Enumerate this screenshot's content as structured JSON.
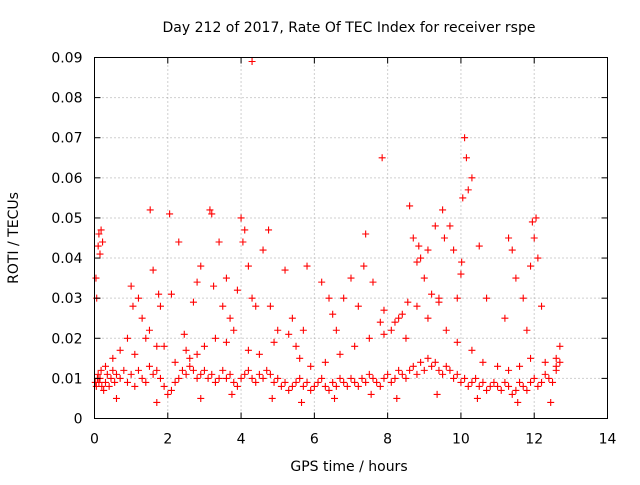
{
  "chart_data": {
    "type": "scatter",
    "title": "Day 212 of 2017, Rate Of TEC Index for receiver rspe",
    "xlabel": "GPS time / hours",
    "ylabel": "ROTI / TECUs",
    "xlim": [
      0,
      14
    ],
    "ylim": [
      0,
      0.09
    ],
    "xticks": [
      "0",
      "2",
      "4",
      "6",
      "8",
      "10",
      "12",
      "14"
    ],
    "xtick_values": [
      0,
      2,
      4,
      6,
      8,
      10,
      12,
      14
    ],
    "yticks": [
      "0",
      "0.01",
      "0.02",
      "0.03",
      "0.04",
      "0.05",
      "0.06",
      "0.07",
      "0.08",
      "0.09"
    ],
    "ytick_values": [
      0,
      0.01,
      0.02,
      0.03,
      0.04,
      0.05,
      0.06,
      0.07,
      0.08,
      0.09
    ],
    "grid": true,
    "marker": "plus",
    "marker_color": "#ff0000",
    "series": [
      {
        "name": "ROTI",
        "x": [
          0.02,
          0.05,
          0.08,
          0.1,
          0.12,
          0.15,
          0.18,
          0.2,
          0.25,
          0.3,
          0.35,
          0.4,
          0.45,
          0.5,
          0.55,
          0.6,
          0.7,
          0.8,
          0.9,
          1.0,
          1.1,
          1.2,
          1.3,
          1.4,
          1.5,
          1.6,
          1.7,
          1.8,
          1.9,
          2.0,
          2.1,
          2.2,
          2.3,
          2.4,
          2.5,
          2.6,
          2.7,
          2.8,
          2.9,
          3.0,
          3.1,
          3.2,
          3.3,
          3.4,
          3.5,
          3.6,
          3.7,
          3.8,
          3.9,
          4.0,
          4.1,
          4.2,
          4.3,
          4.4,
          4.5,
          4.6,
          4.7,
          4.8,
          4.9,
          5.0,
          5.1,
          5.2,
          5.3,
          5.4,
          5.5,
          5.6,
          5.7,
          5.8,
          5.9,
          6.0,
          6.1,
          6.2,
          6.3,
          6.4,
          6.5,
          6.6,
          6.7,
          6.8,
          6.9,
          7.0,
          7.1,
          7.2,
          7.3,
          7.4,
          7.5,
          7.6,
          7.7,
          7.8,
          7.9,
          8.0,
          8.1,
          8.2,
          8.3,
          8.4,
          8.5,
          8.6,
          8.7,
          8.8,
          8.9,
          9.0,
          9.1,
          9.2,
          9.3,
          9.4,
          9.5,
          9.6,
          9.7,
          9.8,
          9.9,
          10.0,
          10.1,
          10.2,
          10.3,
          10.4,
          10.5,
          10.6,
          10.7,
          10.8,
          10.9,
          11.0,
          11.1,
          11.2,
          11.3,
          11.4,
          11.5,
          11.6,
          11.7,
          11.8,
          11.9,
          12.0,
          12.1,
          12.2,
          12.3,
          12.4,
          12.5,
          12.6,
          12.7,
          0.04,
          0.06,
          0.1,
          0.12,
          0.15,
          0.18,
          0.22,
          0.9,
          1.0,
          1.05,
          1.2,
          1.3,
          1.5,
          1.52,
          1.6,
          1.75,
          1.8,
          1.9,
          2.05,
          2.1,
          2.3,
          2.45,
          2.6,
          2.7,
          2.8,
          2.9,
          3.15,
          3.2,
          3.25,
          3.4,
          3.5,
          3.6,
          3.7,
          3.9,
          4.0,
          4.05,
          4.1,
          4.2,
          4.3,
          4.4,
          4.6,
          4.75,
          4.8,
          5.0,
          5.2,
          5.4,
          5.5,
          5.7,
          5.8,
          6.2,
          6.4,
          6.5,
          6.6,
          6.8,
          7.0,
          7.2,
          7.35,
          7.4,
          7.6,
          7.8,
          7.85,
          7.9,
          8.1,
          8.3,
          8.5,
          8.55,
          8.6,
          8.7,
          8.8,
          8.85,
          8.9,
          9.0,
          9.1,
          9.2,
          9.3,
          9.4,
          9.5,
          9.55,
          9.7,
          9.8,
          9.9,
          10.0,
          10.02,
          10.05,
          10.1,
          10.15,
          10.2,
          10.3,
          10.5,
          10.7,
          11.2,
          11.3,
          11.4,
          11.5,
          11.7,
          11.8,
          11.9,
          11.95,
          12.0,
          12.05,
          12.1,
          12.2,
          12.6,
          12.7,
          4.3,
          0.3,
          0.5,
          0.7,
          1.1,
          1.4,
          1.7,
          2.2,
          2.5,
          2.8,
          3.0,
          3.3,
          3.6,
          3.8,
          4.2,
          4.5,
          4.9,
          5.3,
          5.6,
          5.9,
          6.3,
          6.7,
          7.1,
          7.5,
          7.9,
          8.2,
          8.4,
          8.8,
          9.1,
          9.4,
          9.6,
          9.9,
          10.3,
          10.6,
          11.0,
          11.3,
          11.6,
          11.9,
          12.3,
          12.6,
          0.6,
          1.7,
          2.9,
          3.75,
          4.85,
          5.65,
          6.55,
          7.55,
          8.25,
          9.35,
          10.45,
          11.55,
          12.45
        ],
        "y": [
          0.009,
          0.008,
          0.01,
          0.011,
          0.009,
          0.01,
          0.012,
          0.008,
          0.007,
          0.009,
          0.011,
          0.008,
          0.01,
          0.012,
          0.009,
          0.011,
          0.01,
          0.012,
          0.009,
          0.011,
          0.008,
          0.012,
          0.01,
          0.009,
          0.013,
          0.011,
          0.012,
          0.01,
          0.008,
          0.006,
          0.007,
          0.009,
          0.01,
          0.012,
          0.011,
          0.013,
          0.012,
          0.01,
          0.011,
          0.012,
          0.01,
          0.011,
          0.009,
          0.01,
          0.012,
          0.01,
          0.011,
          0.009,
          0.008,
          0.01,
          0.011,
          0.012,
          0.01,
          0.009,
          0.011,
          0.01,
          0.012,
          0.011,
          0.009,
          0.01,
          0.008,
          0.009,
          0.007,
          0.008,
          0.009,
          0.01,
          0.008,
          0.009,
          0.007,
          0.008,
          0.009,
          0.01,
          0.008,
          0.007,
          0.009,
          0.008,
          0.01,
          0.009,
          0.008,
          0.01,
          0.009,
          0.008,
          0.01,
          0.009,
          0.011,
          0.01,
          0.009,
          0.008,
          0.01,
          0.011,
          0.009,
          0.01,
          0.012,
          0.011,
          0.01,
          0.012,
          0.013,
          0.011,
          0.014,
          0.012,
          0.015,
          0.013,
          0.014,
          0.012,
          0.011,
          0.013,
          0.012,
          0.01,
          0.011,
          0.009,
          0.01,
          0.008,
          0.009,
          0.01,
          0.008,
          0.009,
          0.007,
          0.008,
          0.009,
          0.008,
          0.007,
          0.009,
          0.008,
          0.006,
          0.007,
          0.009,
          0.008,
          0.007,
          0.009,
          0.01,
          0.008,
          0.009,
          0.011,
          0.01,
          0.009,
          0.012,
          0.014,
          0.035,
          0.03,
          0.043,
          0.046,
          0.041,
          0.047,
          0.044,
          0.02,
          0.033,
          0.028,
          0.03,
          0.025,
          0.022,
          0.052,
          0.037,
          0.031,
          0.028,
          0.018,
          0.051,
          0.031,
          0.044,
          0.021,
          0.015,
          0.029,
          0.034,
          0.038,
          0.052,
          0.051,
          0.033,
          0.044,
          0.028,
          0.035,
          0.025,
          0.032,
          0.05,
          0.044,
          0.047,
          0.038,
          0.03,
          0.028,
          0.042,
          0.047,
          0.028,
          0.022,
          0.037,
          0.025,
          0.018,
          0.022,
          0.038,
          0.034,
          0.03,
          0.026,
          0.022,
          0.03,
          0.035,
          0.028,
          0.038,
          0.046,
          0.034,
          0.024,
          0.065,
          0.027,
          0.022,
          0.025,
          0.02,
          0.029,
          0.053,
          0.045,
          0.039,
          0.043,
          0.04,
          0.035,
          0.042,
          0.031,
          0.048,
          0.029,
          0.052,
          0.045,
          0.048,
          0.042,
          0.03,
          0.036,
          0.039,
          0.055,
          0.07,
          0.065,
          0.057,
          0.06,
          0.043,
          0.03,
          0.025,
          0.045,
          0.042,
          0.035,
          0.03,
          0.022,
          0.038,
          0.049,
          0.045,
          0.05,
          0.04,
          0.028,
          0.015,
          0.018,
          0.089,
          0.013,
          0.015,
          0.017,
          0.016,
          0.02,
          0.018,
          0.014,
          0.017,
          0.016,
          0.018,
          0.02,
          0.019,
          0.022,
          0.017,
          0.016,
          0.019,
          0.021,
          0.015,
          0.013,
          0.014,
          0.016,
          0.018,
          0.02,
          0.021,
          0.024,
          0.026,
          0.028,
          0.025,
          0.03,
          0.022,
          0.019,
          0.017,
          0.014,
          0.013,
          0.012,
          0.013,
          0.015,
          0.014,
          0.013,
          0.005,
          0.004,
          0.005,
          0.006,
          0.005,
          0.004,
          0.005,
          0.006,
          0.005,
          0.006,
          0.005,
          0.004,
          0.004
        ]
      }
    ]
  }
}
